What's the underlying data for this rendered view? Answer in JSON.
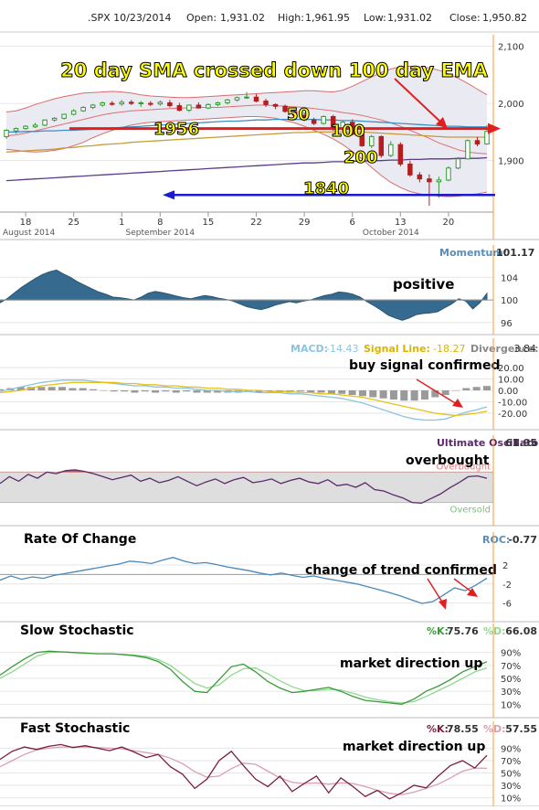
{
  "header": {
    "symbol_date": ".SPX 10/23/2014",
    "open_label": "Open:",
    "open": "1,931.02",
    "high_label": "High:",
    "high": "1,961.95",
    "low_label": "Low:",
    "low": "1,931.02",
    "close_label": "Close:",
    "close": "1,950.82"
  },
  "chart_data": [
    {
      "id": "price",
      "type": "candlestick",
      "y_ticks": [
        "2,100",
        "2,000",
        "1,900"
      ],
      "y_tick_values": [
        2100,
        2000,
        1900
      ],
      "ylim": [
        1810,
        2120
      ],
      "x_ticks": [
        "18",
        "25",
        "1",
        "8",
        "15",
        "22",
        "29",
        "6",
        "13",
        "20"
      ],
      "month_labels": [
        "August 2014",
        "September 2014",
        "October 2014"
      ],
      "annotations": [
        {
          "text": "20 day SMA crossed down 100 day EMA",
          "color": "#ffff00"
        },
        {
          "text": "1956",
          "color": "#ffff00",
          "value": 1956
        },
        {
          "text": "1840",
          "color": "#ffff00",
          "value": 1840
        },
        {
          "text": "50",
          "color": "#ffff00"
        },
        {
          "text": "100",
          "color": "#ffff00"
        },
        {
          "text": "200",
          "color": "#ffff00"
        }
      ],
      "candles": [
        {
          "o": 1942,
          "h": 1955,
          "l": 1938,
          "c": 1953
        },
        {
          "o": 1952,
          "h": 1958,
          "l": 1947,
          "c": 1956
        },
        {
          "o": 1956,
          "h": 1962,
          "l": 1954,
          "c": 1960
        },
        {
          "o": 1959,
          "h": 1966,
          "l": 1957,
          "c": 1962
        },
        {
          "o": 1962,
          "h": 1972,
          "l": 1960,
          "c": 1971
        },
        {
          "o": 1971,
          "h": 1976,
          "l": 1968,
          "c": 1974
        },
        {
          "o": 1974,
          "h": 1982,
          "l": 1972,
          "c": 1981
        },
        {
          "o": 1981,
          "h": 1990,
          "l": 1979,
          "c": 1987
        },
        {
          "o": 1987,
          "h": 1995,
          "l": 1985,
          "c": 1993
        },
        {
          "o": 1993,
          "h": 1999,
          "l": 1990,
          "c": 1997
        },
        {
          "o": 1997,
          "h": 2003,
          "l": 1994,
          "c": 2001
        },
        {
          "o": 2000,
          "h": 2004,
          "l": 1996,
          "c": 1999
        },
        {
          "o": 1999,
          "h": 2006,
          "l": 1996,
          "c": 2002
        },
        {
          "o": 2002,
          "h": 2006,
          "l": 1997,
          "c": 2000
        },
        {
          "o": 2000,
          "h": 2004,
          "l": 1994,
          "c": 2001
        },
        {
          "o": 2000,
          "h": 2004,
          "l": 1995,
          "c": 1999
        },
        {
          "o": 1999,
          "h": 2005,
          "l": 1996,
          "c": 2002
        },
        {
          "o": 2001,
          "h": 2006,
          "l": 1993,
          "c": 1996
        },
        {
          "o": 1996,
          "h": 2001,
          "l": 1986,
          "c": 1988
        },
        {
          "o": 1988,
          "h": 1998,
          "l": 1985,
          "c": 1997
        },
        {
          "o": 1997,
          "h": 2002,
          "l": 1991,
          "c": 1992
        },
        {
          "o": 1992,
          "h": 2000,
          "l": 1990,
          "c": 1998
        },
        {
          "o": 1998,
          "h": 2003,
          "l": 1995,
          "c": 2001
        },
        {
          "o": 2001,
          "h": 2008,
          "l": 1998,
          "c": 2006
        },
        {
          "o": 2006,
          "h": 2012,
          "l": 2003,
          "c": 2010
        },
        {
          "o": 2010,
          "h": 2020,
          "l": 2008,
          "c": 2011
        },
        {
          "o": 2011,
          "h": 2016,
          "l": 2002,
          "c": 2004
        },
        {
          "o": 2004,
          "h": 2008,
          "l": 1994,
          "c": 1998
        },
        {
          "o": 1998,
          "h": 2000,
          "l": 1990,
          "c": 1995
        },
        {
          "o": 1995,
          "h": 1998,
          "l": 1984,
          "c": 1986
        },
        {
          "o": 1986,
          "h": 1992,
          "l": 1976,
          "c": 1979
        },
        {
          "o": 1979,
          "h": 1984,
          "l": 1969,
          "c": 1971
        },
        {
          "o": 1971,
          "h": 1975,
          "l": 1962,
          "c": 1965
        },
        {
          "o": 1965,
          "h": 1979,
          "l": 1963,
          "c": 1977
        },
        {
          "o": 1977,
          "h": 1980,
          "l": 1952,
          "c": 1955
        },
        {
          "o": 1955,
          "h": 1970,
          "l": 1952,
          "c": 1967
        },
        {
          "o": 1967,
          "h": 1972,
          "l": 1944,
          "c": 1946
        },
        {
          "o": 1946,
          "h": 1950,
          "l": 1924,
          "c": 1926
        },
        {
          "o": 1926,
          "h": 1945,
          "l": 1922,
          "c": 1942
        },
        {
          "o": 1942,
          "h": 1944,
          "l": 1905,
          "c": 1909
        },
        {
          "o": 1909,
          "h": 1934,
          "l": 1906,
          "c": 1928
        },
        {
          "o": 1928,
          "h": 1932,
          "l": 1890,
          "c": 1894
        },
        {
          "o": 1894,
          "h": 1900,
          "l": 1872,
          "c": 1875
        },
        {
          "o": 1875,
          "h": 1880,
          "l": 1862,
          "c": 1868
        },
        {
          "o": 1868,
          "h": 1876,
          "l": 1821,
          "c": 1863
        },
        {
          "o": 1863,
          "h": 1872,
          "l": 1835,
          "c": 1866
        },
        {
          "o": 1866,
          "h": 1890,
          "l": 1864,
          "c": 1887
        },
        {
          "o": 1887,
          "h": 1906,
          "l": 1885,
          "c": 1903
        },
        {
          "o": 1903,
          "h": 1937,
          "l": 1902,
          "c": 1935
        },
        {
          "o": 1935,
          "h": 1941,
          "l": 1925,
          "c": 1929
        },
        {
          "o": 1929,
          "h": 1962,
          "l": 1928,
          "c": 1951
        }
      ],
      "sma20": [
        1943,
        1945,
        1948,
        1952,
        1956,
        1960,
        1964,
        1968,
        1972,
        1976,
        1980,
        1983,
        1985,
        1987,
        1988,
        1989,
        1990,
        1991,
        1992,
        1992,
        1993,
        1993,
        1993,
        1994,
        1995,
        1996,
        1997,
        1997,
        1996,
        1995,
        1994,
        1993,
        1991,
        1989,
        1987,
        1984,
        1982,
        1979,
        1975,
        1971,
        1966,
        1960,
        1953,
        1946,
        1939,
        1931,
        1925,
        1919,
        1915,
        1913,
        1912
      ],
      "bb_upper": [
        1985,
        1987,
        1992,
        1998,
        2003,
        2008,
        2012,
        2015,
        2018,
        2019,
        2020,
        2021,
        2020,
        2018,
        2015,
        2013,
        2012,
        2011,
        2010,
        2010,
        2011,
        2012,
        2013,
        2014,
        2015,
        2016,
        2017,
        2018,
        2019,
        2020,
        2021,
        2022,
        2022,
        2021,
        2020,
        2023,
        2030,
        2038,
        2046,
        2054,
        2060,
        2064,
        2065,
        2064,
        2062,
        2058,
        2052,
        2044,
        2035,
        2025,
        2015
      ],
      "bb_lower": [
        1920,
        1918,
        1916,
        1915,
        1916,
        1918,
        1921,
        1926,
        1932,
        1940,
        1947,
        1953,
        1958,
        1962,
        1965,
        1967,
        1968,
        1969,
        1970,
        1971,
        1972,
        1973,
        1974,
        1975,
        1976,
        1977,
        1977,
        1976,
        1974,
        1970,
        1966,
        1960,
        1953,
        1946,
        1938,
        1928,
        1916,
        1903,
        1888,
        1874,
        1862,
        1853,
        1846,
        1842,
        1840,
        1838,
        1837,
        1838,
        1840,
        1842,
        1845
      ],
      "ma50": [
        1950,
        1950,
        1951,
        1951,
        1952,
        1952,
        1953,
        1953,
        1954,
        1955,
        1956,
        1957,
        1958,
        1959,
        1960,
        1961,
        1962,
        1963,
        1964,
        1965,
        1966,
        1967,
        1968,
        1969,
        1969,
        1970,
        1971,
        1971,
        1972,
        1972,
        1972,
        1972,
        1972,
        1971,
        1971,
        1970,
        1970,
        1969,
        1968,
        1967,
        1966,
        1965,
        1964,
        1963,
        1962,
        1961,
        1960,
        1960,
        1959,
        1959,
        1959
      ],
      "ema100": [
        1915,
        1916,
        1917,
        1918,
        1919,
        1920,
        1922,
        1923,
        1925,
        1926,
        1928,
        1929,
        1930,
        1932,
        1933,
        1934,
        1935,
        1936,
        1937,
        1938,
        1939,
        1940,
        1941,
        1942,
        1943,
        1944,
        1945,
        1946,
        1947,
        1948,
        1949,
        1949,
        1950,
        1950,
        1950,
        1950,
        1950,
        1950,
        1949,
        1948,
        1947,
        1946,
        1945,
        1944,
        1943,
        1942,
        1941,
        1941,
        1941,
        1941,
        1941
      ],
      "ma200": [
        1865,
        1866,
        1867,
        1868,
        1869,
        1870,
        1871,
        1872,
        1873,
        1874,
        1875,
        1876,
        1877,
        1878,
        1879,
        1880,
        1881,
        1882,
        1883,
        1884,
        1885,
        1886,
        1887,
        1888,
        1889,
        1890,
        1891,
        1892,
        1893,
        1894,
        1895,
        1896,
        1896,
        1897,
        1898,
        1898,
        1899,
        1899,
        1900,
        1900,
        1901,
        1901,
        1902,
        1902,
        1903,
        1903,
        1903,
        1904,
        1904,
        1904,
        1905
      ]
    },
    {
      "id": "momentum",
      "type": "area",
      "title": "Momentum:",
      "value_label": "101.17",
      "y_ticks": [
        "104",
        "100",
        "96"
      ],
      "y_tick_values": [
        104,
        100,
        96
      ],
      "ylim": [
        94.5,
        106.5
      ],
      "annotation": "positive",
      "values": [
        99.5,
        100.2,
        101.2,
        102.2,
        103.0,
        103.8,
        104.5,
        105.0,
        105.3,
        104.6,
        104.0,
        103.2,
        102.6,
        102.0,
        101.4,
        101.0,
        100.5,
        100.4,
        100.2,
        100.0,
        100.5,
        101.2,
        101.5,
        101.3,
        101.0,
        100.7,
        100.4,
        100.2,
        100.5,
        100.8,
        100.6,
        100.3,
        100.1,
        99.8,
        99.3,
        98.8,
        98.5,
        98.3,
        98.6,
        99.1,
        99.4,
        99.7,
        99.5,
        99.8,
        100.0,
        100.4,
        100.8,
        101.0,
        101.4,
        101.3,
        101.0,
        100.5,
        99.7,
        99.0,
        98.2,
        97.3,
        96.8,
        96.4,
        96.8,
        97.4,
        97.6,
        97.7,
        97.9,
        98.6,
        99.3,
        100.2,
        99.8,
        98.4,
        99.5,
        101.17
      ]
    },
    {
      "id": "macd",
      "type": "line",
      "labels": {
        "macd": "MACD:",
        "macd_value": "-14.43",
        "signal": "Signal Line:",
        "signal_value": "-18.27",
        "divergence": "Divergence:",
        "divergence_value": "3.84"
      },
      "y_ticks": [
        "20.00",
        "10.00",
        "0.00",
        "-10.00",
        "-20.00"
      ],
      "y_tick_values": [
        20,
        10,
        0,
        -10,
        -20
      ],
      "ylim": [
        -28,
        28
      ],
      "annotation": "buy signal confirmed",
      "macd_values": [
        -1,
        1,
        3,
        5,
        7,
        8,
        9,
        9,
        9,
        8,
        7,
        6,
        5,
        4,
        4,
        3,
        3,
        2,
        2,
        1,
        0,
        0,
        -1,
        -1,
        -1,
        -2,
        -2,
        -2,
        -3,
        -3,
        -4,
        -5,
        -6,
        -7,
        -9,
        -11,
        -14,
        -17,
        -20,
        -23,
        -25,
        -26,
        -26,
        -25,
        -22,
        -19,
        -17,
        -14.43
      ],
      "signal_values": [
        -2,
        -1,
        0,
        2,
        4,
        5,
        6,
        7,
        7,
        7,
        7,
        7,
        6,
        6,
        5,
        5,
        4,
        4,
        3,
        3,
        2,
        2,
        1,
        1,
        0,
        0,
        -1,
        -1,
        -1,
        -2,
        -2,
        -3,
        -3,
        -4,
        -5,
        -6,
        -8,
        -10,
        -12,
        -14,
        -16,
        -18,
        -20,
        -21,
        -22,
        -21,
        -20,
        -18.27
      ]
    },
    {
      "id": "ultimate",
      "type": "line",
      "title": "Ultimate Oscillator:",
      "value_label": "61.95",
      "band_labels": [
        "Overbought",
        "Oversold"
      ],
      "ylim": [
        15,
        85
      ],
      "overbought": 70,
      "oversold": 30,
      "annotation": "overbought",
      "values": [
        55,
        64,
        58,
        67,
        62,
        70,
        68,
        72,
        73,
        71,
        68,
        64,
        60,
        63,
        66,
        58,
        62,
        56,
        59,
        64,
        58,
        52,
        57,
        61,
        55,
        60,
        63,
        56,
        58,
        61,
        55,
        59,
        62,
        57,
        55,
        60,
        52,
        54,
        50,
        56,
        47,
        45,
        40,
        36,
        30,
        29,
        35,
        41,
        49,
        56,
        64,
        65,
        61.95
      ]
    },
    {
      "id": "roc",
      "type": "line",
      "title": "Rate Of Change",
      "value_title": "ROC:",
      "value_label": "-0.77",
      "y_ticks": [
        "2",
        "-2",
        "-6"
      ],
      "y_tick_values": [
        2,
        -2,
        -6
      ],
      "ylim": [
        -8,
        4.5
      ],
      "annotation": "change of trend confirmed",
      "values": [
        -1.2,
        -0.3,
        -1.0,
        -0.5,
        -0.8,
        -0.2,
        0.2,
        0.6,
        1.0,
        1.4,
        1.8,
        2.2,
        2.8,
        2.6,
        2.3,
        3.0,
        3.6,
        2.8,
        2.3,
        2.5,
        2.1,
        1.6,
        1.2,
        0.8,
        0.3,
        -0.1,
        0.3,
        -0.2,
        -0.6,
        -0.3,
        -0.8,
        -1.2,
        -1.6,
        -2.0,
        -2.6,
        -3.2,
        -3.8,
        -4.5,
        -5.3,
        -6.1,
        -5.7,
        -4.3,
        -2.8,
        -3.4,
        -2.2,
        -0.77
      ]
    },
    {
      "id": "slow_stoch",
      "type": "line",
      "title": "Slow Stochastic",
      "k_title": "%K:",
      "k_value": "75.76",
      "d_title": "%D:",
      "d_value": "66.08",
      "y_ticks": [
        "90%",
        "70%",
        "50%",
        "30%",
        "10%"
      ],
      "y_tick_values": [
        90,
        70,
        50,
        30,
        10
      ],
      "ylim": [
        2,
        98
      ],
      "annotation": "market direction up",
      "k_values": [
        55,
        68,
        80,
        90,
        92,
        91,
        90,
        89,
        88,
        88,
        87,
        85,
        82,
        76,
        64,
        45,
        30,
        28,
        48,
        68,
        72,
        60,
        45,
        35,
        28,
        30,
        33,
        36,
        30,
        22,
        16,
        14,
        12,
        10,
        18,
        30,
        38,
        48,
        60,
        68,
        75.76
      ],
      "d_values": [
        50,
        60,
        72,
        84,
        90,
        91,
        90,
        89,
        88,
        88,
        87,
        86,
        84,
        79,
        70,
        56,
        42,
        35,
        40,
        55,
        65,
        66,
        57,
        46,
        37,
        31,
        31,
        33,
        32,
        27,
        21,
        17,
        14,
        12,
        14,
        22,
        31,
        40,
        50,
        60,
        66.08
      ]
    },
    {
      "id": "fast_stoch",
      "type": "line",
      "title": "Fast Stochastic",
      "k_title": "%K:",
      "k_value": "78.55",
      "d_title": "%D:",
      "d_value": "57.55",
      "y_ticks": [
        "90%",
        "70%",
        "50%",
        "30%",
        "10%"
      ],
      "y_tick_values": [
        90,
        70,
        50,
        30,
        10
      ],
      "ylim": [
        2,
        98
      ],
      "annotation": "market direction up",
      "k_values": [
        72,
        85,
        92,
        88,
        93,
        96,
        91,
        94,
        90,
        86,
        92,
        84,
        75,
        80,
        60,
        48,
        25,
        40,
        70,
        85,
        62,
        40,
        28,
        45,
        20,
        33,
        45,
        18,
        42,
        28,
        12,
        22,
        8,
        18,
        30,
        26,
        45,
        62,
        70,
        58,
        78.55
      ],
      "d_values": [
        60,
        70,
        80,
        87,
        90,
        92,
        92,
        92,
        91,
        90,
        89,
        86,
        83,
        80,
        74,
        65,
        52,
        43,
        45,
        57,
        66,
        64,
        53,
        42,
        35,
        33,
        34,
        32,
        34,
        33,
        28,
        22,
        17,
        15,
        19,
        25,
        32,
        42,
        53,
        58,
        57.55
      ]
    }
  ]
}
